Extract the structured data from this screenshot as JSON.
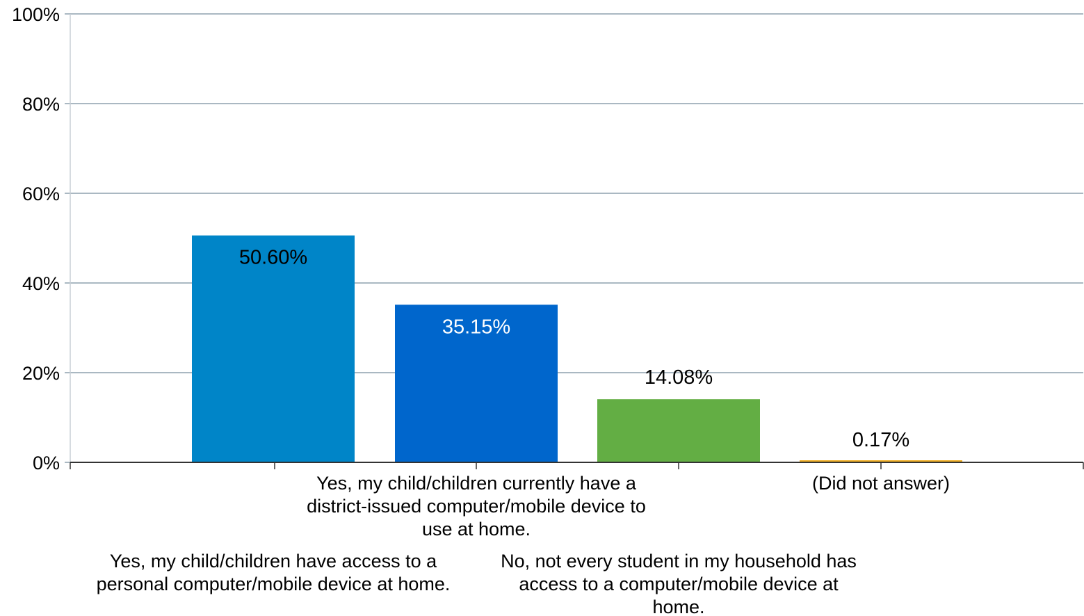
{
  "chart_data": {
    "type": "bar",
    "categories": [
      [
        "Yes, my child/children have access to a",
        "personal computer/mobile device at home."
      ],
      [
        "Yes, my child/children currently have a",
        "district-issued computer/mobile device to",
        "use at home."
      ],
      [
        "No, not every student in my household has",
        "access to a computer/mobile device at",
        "home."
      ],
      [
        "(Did not answer)"
      ]
    ],
    "values": [
      50.6,
      35.15,
      14.08,
      0.17
    ],
    "value_labels": [
      "50.60%",
      "35.15%",
      "14.08%",
      "0.17%"
    ],
    "colors": [
      "#0085C8",
      "#0066CC",
      "#63AE44",
      "#F0AD21"
    ],
    "label_colors": [
      "#000000",
      "#ffffff",
      "#000000",
      "#000000"
    ],
    "ylim": [
      0,
      100
    ],
    "yticks": [
      0,
      20,
      40,
      60,
      80,
      100
    ],
    "ytick_labels": [
      "0%",
      "20%",
      "40%",
      "60%",
      "80%",
      "100%"
    ],
    "grid": true,
    "title": "",
    "xlabel": "",
    "ylabel": ""
  }
}
